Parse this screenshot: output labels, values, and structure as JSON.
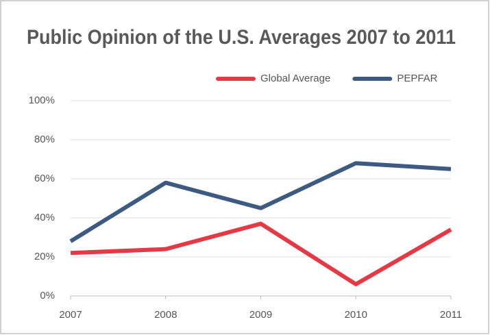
{
  "chart_data": {
    "type": "line",
    "title": "Public Opinion of the U.S. Averages 2007 to 2011",
    "categories": [
      "2007",
      "2008",
      "2009",
      "2010",
      "2011"
    ],
    "series": [
      {
        "name": "Global Average",
        "color": "#e63946",
        "values": [
          22,
          24,
          37,
          6,
          34
        ]
      },
      {
        "name": "PEPFAR",
        "color": "#3d5a80",
        "values": [
          28,
          58,
          45,
          68,
          65
        ]
      }
    ],
    "ylim": [
      0,
      100
    ],
    "yticks": [
      {
        "value": 0,
        "label": "0%"
      },
      {
        "value": 20,
        "label": "20%"
      },
      {
        "value": 40,
        "label": "40%"
      },
      {
        "value": 60,
        "label": "60%"
      },
      {
        "value": 80,
        "label": "80%"
      },
      {
        "value": 100,
        "label": "100%"
      }
    ],
    "grid": true,
    "legend": "top-right"
  }
}
